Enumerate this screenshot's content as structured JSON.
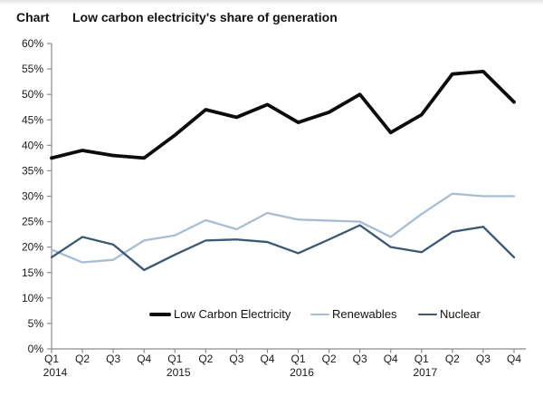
{
  "header": {
    "kicker": "Chart",
    "title": "Low carbon electricity's share of generation"
  },
  "chart_data": {
    "type": "line",
    "title": "Low carbon electricity's share of generation",
    "x_labels": [
      "Q1",
      "Q2",
      "Q3",
      "Q4",
      "Q1",
      "Q2",
      "Q3",
      "Q4",
      "Q1",
      "Q2",
      "Q3",
      "Q4",
      "Q1",
      "Q2",
      "Q3",
      "Q4"
    ],
    "years": [
      {
        "label": "2014",
        "at_index": 0
      },
      {
        "label": "2015",
        "at_index": 4
      },
      {
        "label": "2016",
        "at_index": 8
      },
      {
        "label": "2017",
        "at_index": 12
      }
    ],
    "ylim": [
      0,
      60
    ],
    "y_tick_step": 5,
    "y_tick_suffix": "%",
    "grid": false,
    "legend_position": "bottom-inside",
    "axis_color": "#8c8c8c",
    "label_color": "#1a1a1a",
    "series": [
      {
        "name": "Low Carbon Electricity",
        "color": "#0c0c0c",
        "width": 3.8,
        "values": [
          37.5,
          39,
          38,
          37.5,
          42,
          47,
          45.5,
          48,
          44.5,
          46.5,
          50,
          42.5,
          46,
          54,
          54.5,
          48.5
        ]
      },
      {
        "name": "Renewables",
        "color": "#a8bdd4",
        "width": 2.3,
        "values": [
          19.5,
          17,
          17.5,
          21.3,
          22.3,
          25.3,
          23.5,
          26.7,
          25.4,
          25.2,
          25,
          22,
          26.5,
          30.5,
          30,
          30
        ]
      },
      {
        "name": "Nuclear",
        "color": "#3a5874",
        "width": 2.3,
        "values": [
          18,
          22,
          20.5,
          15.5,
          18.5,
          21.3,
          21.5,
          21,
          18.8,
          21.5,
          24.3,
          20,
          19,
          23,
          24,
          18
        ]
      }
    ]
  }
}
